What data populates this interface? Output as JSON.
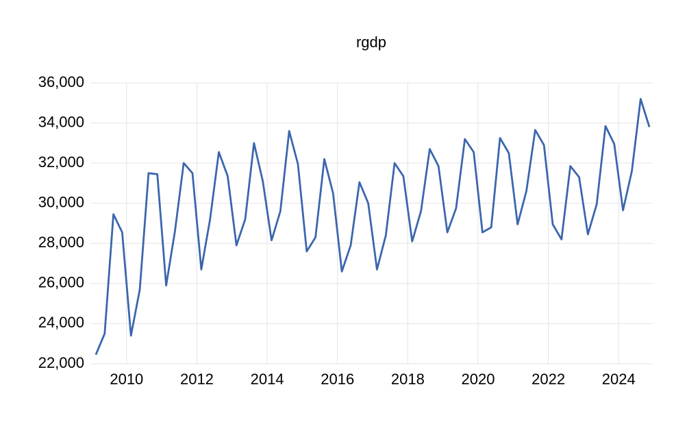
{
  "chart_data": {
    "type": "line",
    "title": "rgdp",
    "x": [
      2009.125,
      2009.375,
      2009.625,
      2009.875,
      2010.125,
      2010.375,
      2010.625,
      2010.875,
      2011.125,
      2011.375,
      2011.625,
      2011.875,
      2012.125,
      2012.375,
      2012.625,
      2012.875,
      2013.125,
      2013.375,
      2013.625,
      2013.875,
      2014.125,
      2014.375,
      2014.625,
      2014.875,
      2015.125,
      2015.375,
      2015.625,
      2015.875,
      2016.125,
      2016.375,
      2016.625,
      2016.875,
      2017.125,
      2017.375,
      2017.625,
      2017.875,
      2018.125,
      2018.375,
      2018.625,
      2018.875,
      2019.125,
      2019.375,
      2019.625,
      2019.875,
      2020.125,
      2020.375,
      2020.625,
      2020.875,
      2021.125,
      2021.375,
      2021.625,
      2021.875,
      2022.125,
      2022.375,
      2022.625,
      2022.875,
      2023.125,
      2023.375,
      2023.625,
      2023.875,
      2024.125,
      2024.375,
      2024.625,
      2024.875
    ],
    "series": [
      {
        "name": "rgdp",
        "color": "#3b66ad",
        "values": [
          22450,
          23500,
          29450,
          28550,
          23400,
          25700,
          31500,
          31450,
          25900,
          28600,
          32000,
          31500,
          26700,
          29200,
          32550,
          31350,
          27900,
          29200,
          33000,
          31100,
          28150,
          29600,
          33600,
          31950,
          27600,
          28300,
          32200,
          30500,
          26600,
          27900,
          31050,
          30000,
          26700,
          28400,
          32000,
          31350,
          28100,
          29600,
          32700,
          31850,
          28550,
          29750,
          33200,
          32550,
          28550,
          28800,
          33250,
          32500,
          28950,
          30600,
          33650,
          32900,
          28950,
          28200,
          31850,
          31300,
          28450,
          29950,
          33850,
          32950,
          29650,
          31600,
          35200,
          33800
        ]
      }
    ],
    "xlim": [
      2008.99,
      2024.97
    ],
    "xticks": [
      2010,
      2012,
      2014,
      2016,
      2018,
      2020,
      2022,
      2024
    ],
    "ylim": [
      22000,
      36000
    ],
    "yticks": [
      {
        "value": 22000,
        "label": "22,000"
      },
      {
        "value": 24000,
        "label": "24,000"
      },
      {
        "value": 26000,
        "label": "26,000"
      },
      {
        "value": 28000,
        "label": "28,000"
      },
      {
        "value": 30000,
        "label": "30,000"
      },
      {
        "value": 32000,
        "label": "32,000"
      },
      {
        "value": 34000,
        "label": "34,000"
      },
      {
        "value": 36000,
        "label": "36,000"
      }
    ],
    "grid": true
  }
}
